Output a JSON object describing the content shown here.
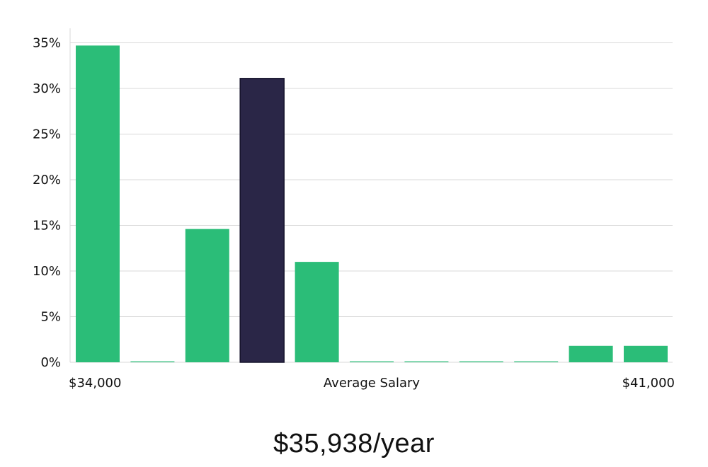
{
  "chart_data": {
    "type": "bar",
    "categories": [
      "1",
      "2",
      "3",
      "4",
      "5",
      "6",
      "7",
      "8",
      "9",
      "10",
      "11"
    ],
    "values": [
      34.7,
      0.1,
      14.6,
      31.1,
      11.0,
      0.1,
      0.1,
      0.1,
      0.1,
      1.8,
      1.8
    ],
    "highlight_index": 3,
    "ylim": [
      0,
      36
    ],
    "yticks": [
      0,
      5,
      10,
      15,
      20,
      25,
      30,
      35
    ],
    "ytick_labels": [
      "0%",
      "5%",
      "10%",
      "15%",
      "20%",
      "25%",
      "30%",
      "35%"
    ],
    "x_min_label": "$34,000",
    "x_max_label": "$41,000",
    "xlabel": "Average Salary",
    "grid": true,
    "colors": {
      "bar": "#2bbd78",
      "highlight": "#2a2647",
      "grid": "#d9d9d9"
    }
  },
  "headline": "$35,938/year"
}
